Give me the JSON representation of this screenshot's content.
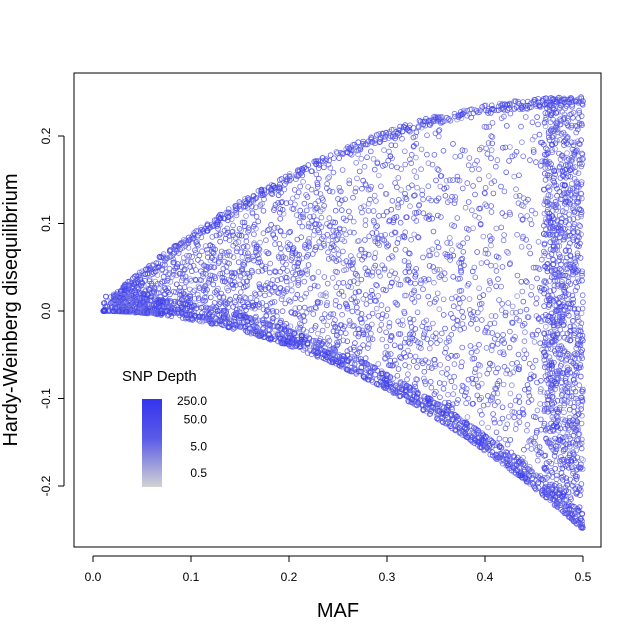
{
  "chart_data": {
    "type": "scatter",
    "title": "",
    "xlabel": "MAF",
    "ylabel": "Hardy-Weinberg disequilibrium",
    "xlim": [
      -0.01,
      0.52
    ],
    "ylim": [
      -0.27,
      0.27
    ],
    "x_ticks": [
      0.0,
      0.1,
      0.2,
      0.3,
      0.4,
      0.5
    ],
    "x_tick_labels": [
      "0.0",
      "0.1",
      "0.2",
      "0.3",
      "0.4",
      "0.5"
    ],
    "y_ticks": [
      -0.2,
      -0.1,
      0.0,
      0.1,
      0.2
    ],
    "y_tick_labels": [
      "-0.2",
      "-0.1",
      "0.0",
      "0.1",
      "0.2"
    ],
    "grid": false,
    "marker": "open-circle",
    "envelope": {
      "upper_bound": "D = p(1-p), p = MAF",
      "lower_bound": "D = -p^2, p = MAF",
      "x_range": [
        0.0,
        0.5
      ]
    },
    "color_scale": {
      "title": "SNP Depth",
      "variable": "SNP Depth",
      "scale": "log",
      "breaks": [
        0.5,
        5.0,
        50.0,
        250.0
      ],
      "break_labels": [
        "0.5",
        "5.0",
        "50.0",
        "250.0"
      ],
      "low_color": "#d3d3d3",
      "high_color": "#3333ee",
      "legend_position": "lower-left"
    },
    "series": [
      {
        "description": "Per-SNP points filling the region between D=-p^2 and D=p(1-p); dense bands along the lower boundary and near MAF=0.5",
        "n_points_approx": 9000,
        "sample_points": [
          {
            "x": 0.01,
            "y": 0.0
          },
          {
            "x": 0.05,
            "y": -0.003
          },
          {
            "x": 0.1,
            "y": -0.01
          },
          {
            "x": 0.2,
            "y": -0.04
          },
          {
            "x": 0.3,
            "y": -0.09
          },
          {
            "x": 0.4,
            "y": -0.16
          },
          {
            "x": 0.5,
            "y": -0.25
          },
          {
            "x": 0.1,
            "y": 0.09
          },
          {
            "x": 0.2,
            "y": 0.16
          },
          {
            "x": 0.3,
            "y": 0.21
          },
          {
            "x": 0.4,
            "y": 0.24
          },
          {
            "x": 0.5,
            "y": 0.25
          },
          {
            "x": 0.5,
            "y": 0.0
          },
          {
            "x": 0.3,
            "y": 0.05
          }
        ]
      }
    ]
  }
}
